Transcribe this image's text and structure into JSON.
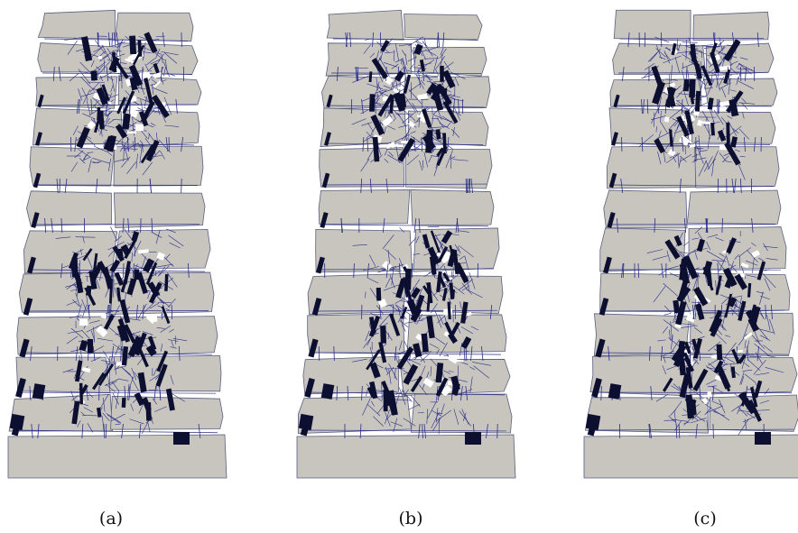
{
  "figure": {
    "panels": [
      {
        "caption": "(a)"
      },
      {
        "caption": "(b)"
      },
      {
        "caption": "(c)"
      }
    ]
  },
  "colors": {
    "block_fill": "#c8c5bf",
    "block_stroke": "#5a5f80",
    "contact_line": "#2b2f86",
    "contact_force": "#0c0f30",
    "background": "#ffffff"
  }
}
